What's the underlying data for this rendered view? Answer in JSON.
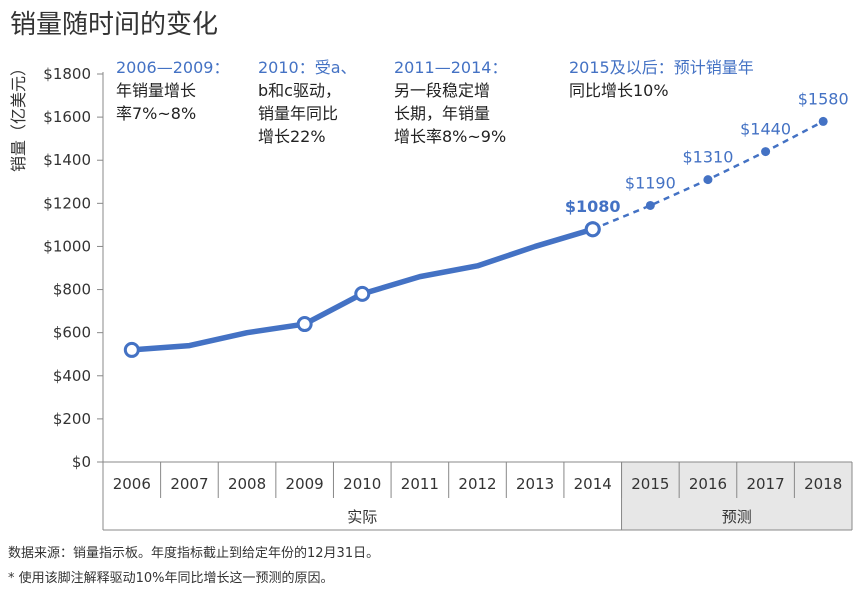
{
  "title": "销量随时间的变化",
  "ylabel": "销量（亿美元）",
  "footnotes": [
    "数据来源：销量指示板。年度指标截止到给定年份的12月31日。",
    "* 使用该脚注解释驱动10%年同比增长这一预测的原因。"
  ],
  "group_labels": {
    "actual": "实际",
    "forecast": "预测"
  },
  "annotations": [
    {
      "head": "2006—2009：",
      "lines": [
        "年销量增长",
        "率7%~8%"
      ]
    },
    {
      "head": "2010：受a、",
      "lines": [
        "b和c驱动，",
        "销量年同比",
        "增长22%"
      ]
    },
    {
      "head": "2011—2014：",
      "lines": [
        "另一段稳定增",
        "长期，年销量",
        "增长率8%~9%"
      ]
    },
    {
      "head": "2015及以后：预计销量年",
      "lines": [
        "同比增长10%"
      ]
    }
  ],
  "colors": {
    "line": "#4472c4",
    "forecast_band": "#e7e7e7",
    "axis": "#888888"
  },
  "chart_data": {
    "type": "line",
    "title": "销量随时间的变化",
    "xlabel": "",
    "ylabel": "销量（亿美元）",
    "categories": [
      "2006",
      "2007",
      "2008",
      "2009",
      "2010",
      "2011",
      "2012",
      "2013",
      "2014",
      "2015",
      "2016",
      "2017",
      "2018"
    ],
    "ylim": [
      0,
      1800
    ],
    "yticks": [
      0,
      200,
      400,
      600,
      800,
      1000,
      1200,
      1400,
      1600,
      1800
    ],
    "ytick_labels": [
      "$0",
      "$200",
      "$400",
      "$600",
      "$800",
      "$1000",
      "$1200",
      "$1400",
      "$1600",
      "$1800"
    ],
    "grid": false,
    "series": [
      {
        "style": "solid",
        "x": [
          "2006",
          "2007",
          "2008",
          "2009",
          "2010",
          "2011",
          "2012",
          "2013",
          "2014"
        ],
        "values": [
          520,
          540,
          600,
          640,
          780,
          860,
          910,
          1000,
          1080
        ],
        "highlighted": [
          "2006",
          "2009",
          "2010",
          "2014"
        ]
      },
      {
        "style": "dashed",
        "x": [
          "2014",
          "2015",
          "2016",
          "2017",
          "2018"
        ],
        "values": [
          1080,
          1190,
          1310,
          1440,
          1580
        ]
      }
    ],
    "data_labels": [
      {
        "x": "2014",
        "text": "$1080",
        "bold": true
      },
      {
        "x": "2015",
        "text": "$1190"
      },
      {
        "x": "2016",
        "text": "$1310"
      },
      {
        "x": "2017",
        "text": "$1440"
      },
      {
        "x": "2018",
        "text": "$1580"
      }
    ],
    "groups": [
      {
        "label": "实际",
        "from": "2006",
        "to": "2014"
      },
      {
        "label": "预测",
        "from": "2015",
        "to": "2018"
      }
    ]
  }
}
